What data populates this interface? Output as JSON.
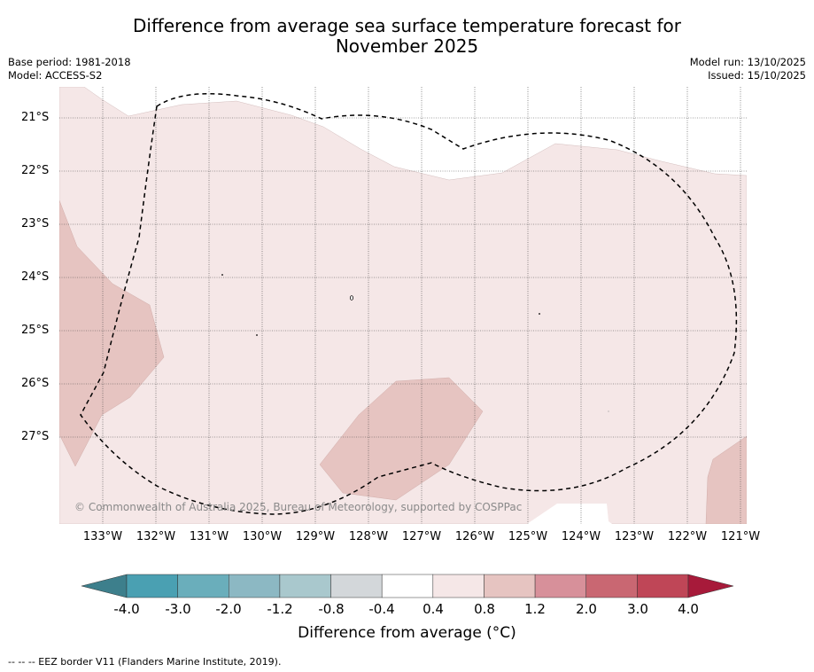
{
  "title_line1": "Difference from average sea surface temperature forecast for",
  "title_line2": "November 2025",
  "base_period": "Base period: 1981-2018",
  "model": "Model: ACCESS-S2",
  "model_run": "Model run: 13/10/2025",
  "issued": "Issued: 15/10/2025",
  "lat_labels": [
    "21°S",
    "22°S",
    "23°S",
    "24°S",
    "25°S",
    "26°S",
    "27°S"
  ],
  "lon_labels": [
    "133°W",
    "132°W",
    "131°W",
    "130°W",
    "129°W",
    "128°W",
    "127°W",
    "126°W",
    "125°W",
    "124°W",
    "123°W",
    "122°W",
    "121°W"
  ],
  "copyright": "© Commonwealth of Australia 2025, Bureau of Meteorology, supported by COSPPac",
  "colorbar": {
    "title": "Difference from average (°C)",
    "tick_labels": [
      "-4.0",
      "-3.0",
      "-2.0",
      "-1.2",
      "-0.8",
      "-0.4",
      "0.4",
      "0.8",
      "1.2",
      "2.0",
      "3.0",
      "4.0"
    ],
    "colors": [
      "#3d7f8c",
      "#4aa0b2",
      "#6aaebb",
      "#8cb8c3",
      "#a9c8cd",
      "#d3d7da",
      "#ffffff",
      "#f5e7e7",
      "#e6c4c1",
      "#d7909a",
      "#c96772",
      "#bf4657",
      "#a71a3a"
    ]
  },
  "footnote": "--  --  -- EEZ border V11 (Flanders Marine Institute, 2019)."
}
